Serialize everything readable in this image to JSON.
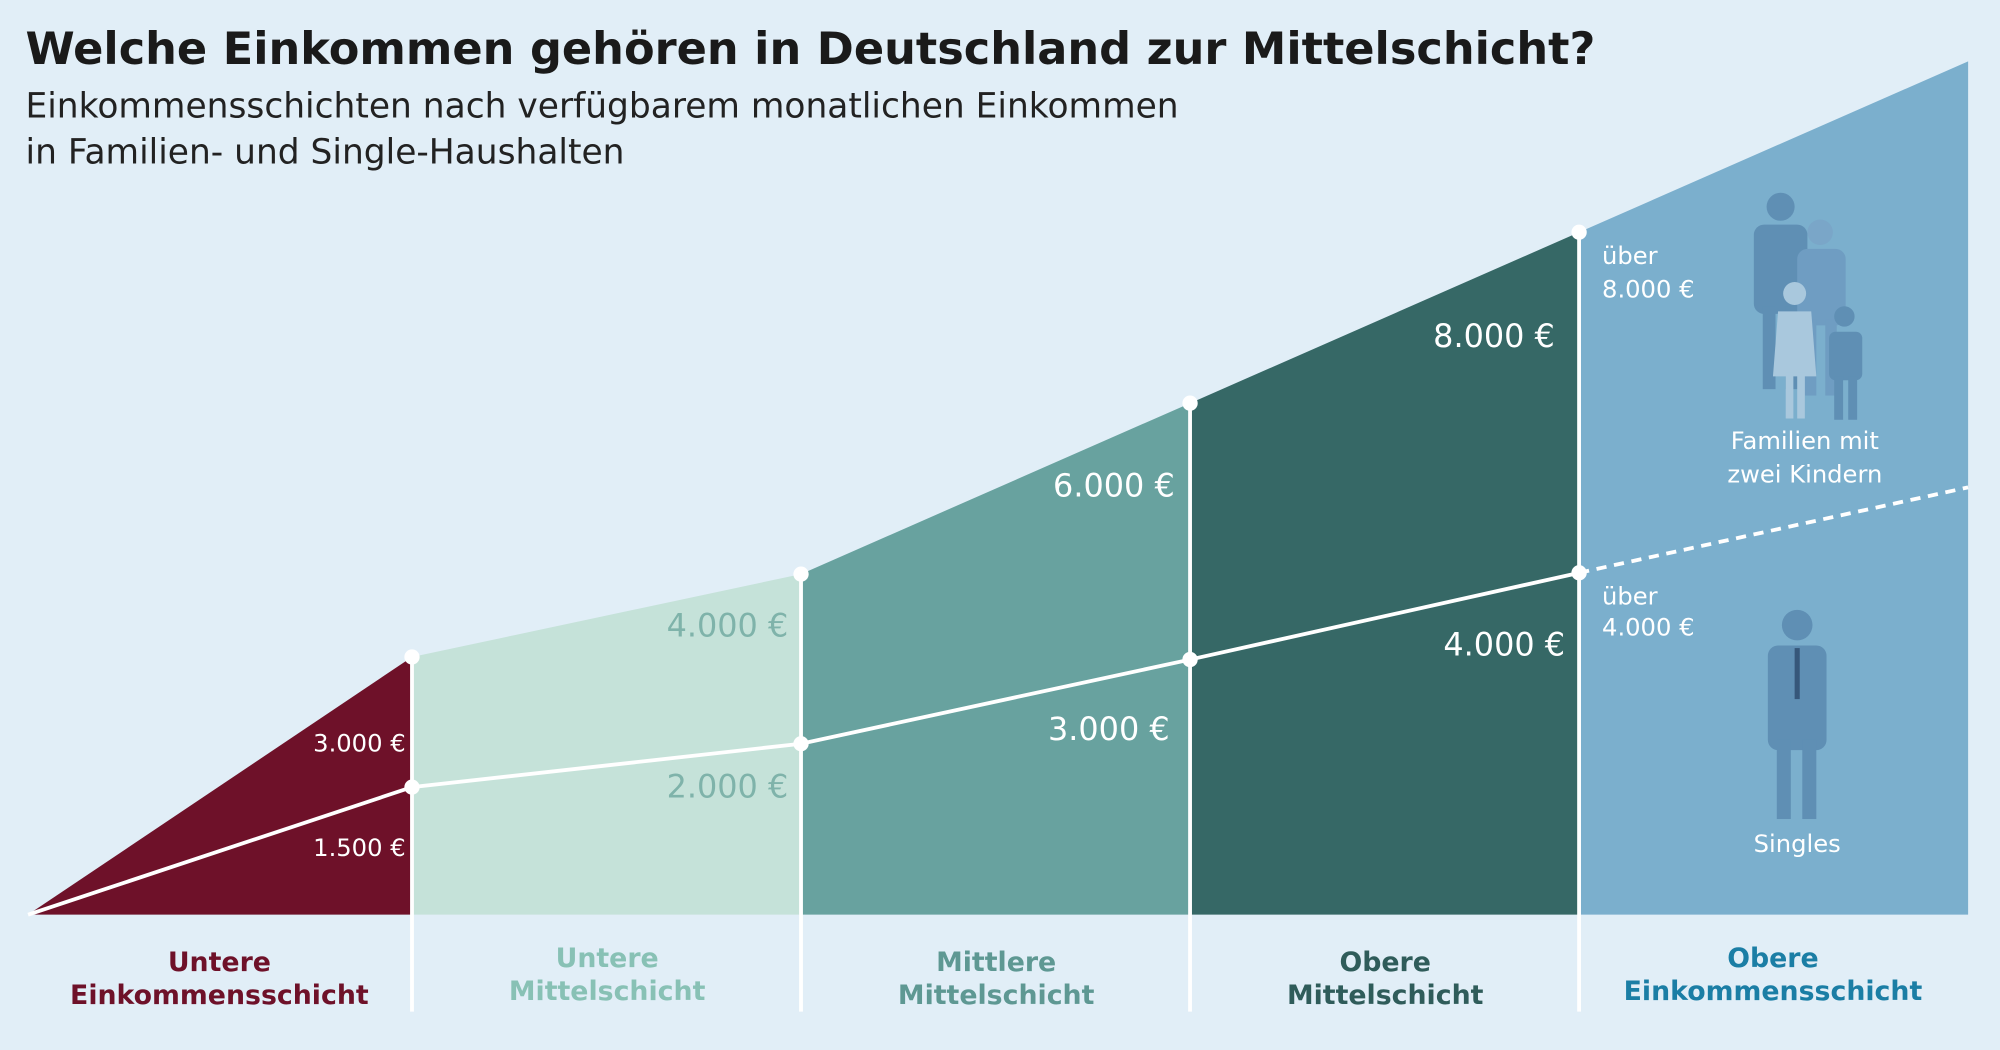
{
  "header": {
    "title": "Welche Einkommen gehören in Deutschland zur Mittelschicht?",
    "subtitle": [
      "Einkommensschichten nach verfügbarem monatlichen Einkommen",
      "in Familien- und Single-Haushalten"
    ]
  },
  "segments": [
    {
      "name": [
        "Untere",
        "Einkommensschicht"
      ],
      "family": "3.000 €",
      "single": "1.500 €"
    },
    {
      "name": [
        "Untere",
        "Mittelschicht"
      ],
      "family": "4.000 €",
      "single": "2.000 €"
    },
    {
      "name": [
        "Mittlere",
        "Mittelschicht"
      ],
      "family": "6.000 €",
      "single": "3.000 €"
    },
    {
      "name": [
        "Obere",
        "Mittelschicht"
      ],
      "family": "8.000 €",
      "single": "4.000 €"
    },
    {
      "name": [
        "Obere",
        "Einkommensschicht"
      ],
      "family": [
        "über",
        "8.000 €"
      ],
      "single": [
        "über",
        "4.000 €"
      ]
    }
  ],
  "legend": {
    "family": [
      "Familien mit",
      "zwei Kindern"
    ],
    "single": "Singles"
  }
}
